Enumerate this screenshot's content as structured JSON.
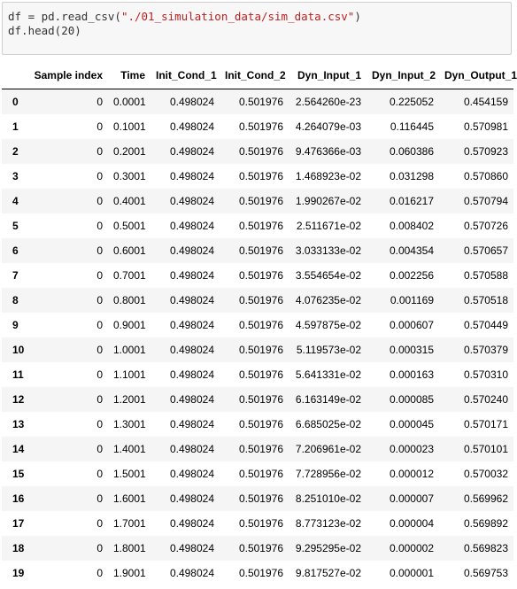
{
  "input": {
    "lines": [
      {
        "pre": "df = pd.read_csv(",
        "str": "\"./01_simulation_data/sim_data.csv\"",
        "post": ")"
      },
      {
        "pre": "df.head(20)",
        "str": "",
        "post": ""
      }
    ]
  },
  "table": {
    "columns": [
      "",
      "Sample index",
      "Time",
      "Init_Cond_1",
      "Init_Cond_2",
      "Dyn_Input_1",
      "Dyn_Input_2",
      "Dyn_Output_1"
    ],
    "rows": [
      [
        "0",
        "0",
        "0.0001",
        "0.498024",
        "0.501976",
        "2.564260e-23",
        "0.225052",
        "0.454159"
      ],
      [
        "1",
        "0",
        "0.1001",
        "0.498024",
        "0.501976",
        "4.264079e-03",
        "0.116445",
        "0.570981"
      ],
      [
        "2",
        "0",
        "0.2001",
        "0.498024",
        "0.501976",
        "9.476366e-03",
        "0.060386",
        "0.570923"
      ],
      [
        "3",
        "0",
        "0.3001",
        "0.498024",
        "0.501976",
        "1.468923e-02",
        "0.031298",
        "0.570860"
      ],
      [
        "4",
        "0",
        "0.4001",
        "0.498024",
        "0.501976",
        "1.990267e-02",
        "0.016217",
        "0.570794"
      ],
      [
        "5",
        "0",
        "0.5001",
        "0.498024",
        "0.501976",
        "2.511671e-02",
        "0.008402",
        "0.570726"
      ],
      [
        "6",
        "0",
        "0.6001",
        "0.498024",
        "0.501976",
        "3.033133e-02",
        "0.004354",
        "0.570657"
      ],
      [
        "7",
        "0",
        "0.7001",
        "0.498024",
        "0.501976",
        "3.554654e-02",
        "0.002256",
        "0.570588"
      ],
      [
        "8",
        "0",
        "0.8001",
        "0.498024",
        "0.501976",
        "4.076235e-02",
        "0.001169",
        "0.570518"
      ],
      [
        "9",
        "0",
        "0.9001",
        "0.498024",
        "0.501976",
        "4.597875e-02",
        "0.000607",
        "0.570449"
      ],
      [
        "10",
        "0",
        "1.0001",
        "0.498024",
        "0.501976",
        "5.119573e-02",
        "0.000315",
        "0.570379"
      ],
      [
        "11",
        "0",
        "1.1001",
        "0.498024",
        "0.501976",
        "5.641331e-02",
        "0.000163",
        "0.570310"
      ],
      [
        "12",
        "0",
        "1.2001",
        "0.498024",
        "0.501976",
        "6.163149e-02",
        "0.000085",
        "0.570240"
      ],
      [
        "13",
        "0",
        "1.3001",
        "0.498024",
        "0.501976",
        "6.685025e-02",
        "0.000045",
        "0.570171"
      ],
      [
        "14",
        "0",
        "1.4001",
        "0.498024",
        "0.501976",
        "7.206961e-02",
        "0.000023",
        "0.570101"
      ],
      [
        "15",
        "0",
        "1.5001",
        "0.498024",
        "0.501976",
        "7.728956e-02",
        "0.000012",
        "0.570032"
      ],
      [
        "16",
        "0",
        "1.6001",
        "0.498024",
        "0.501976",
        "8.251010e-02",
        "0.000007",
        "0.569962"
      ],
      [
        "17",
        "0",
        "1.7001",
        "0.498024",
        "0.501976",
        "8.773123e-02",
        "0.000004",
        "0.569892"
      ],
      [
        "18",
        "0",
        "1.8001",
        "0.498024",
        "0.501976",
        "9.295295e-02",
        "0.000002",
        "0.569823"
      ],
      [
        "19",
        "0",
        "1.9001",
        "0.498024",
        "0.501976",
        "9.817527e-02",
        "0.000001",
        "0.569753"
      ]
    ]
  }
}
